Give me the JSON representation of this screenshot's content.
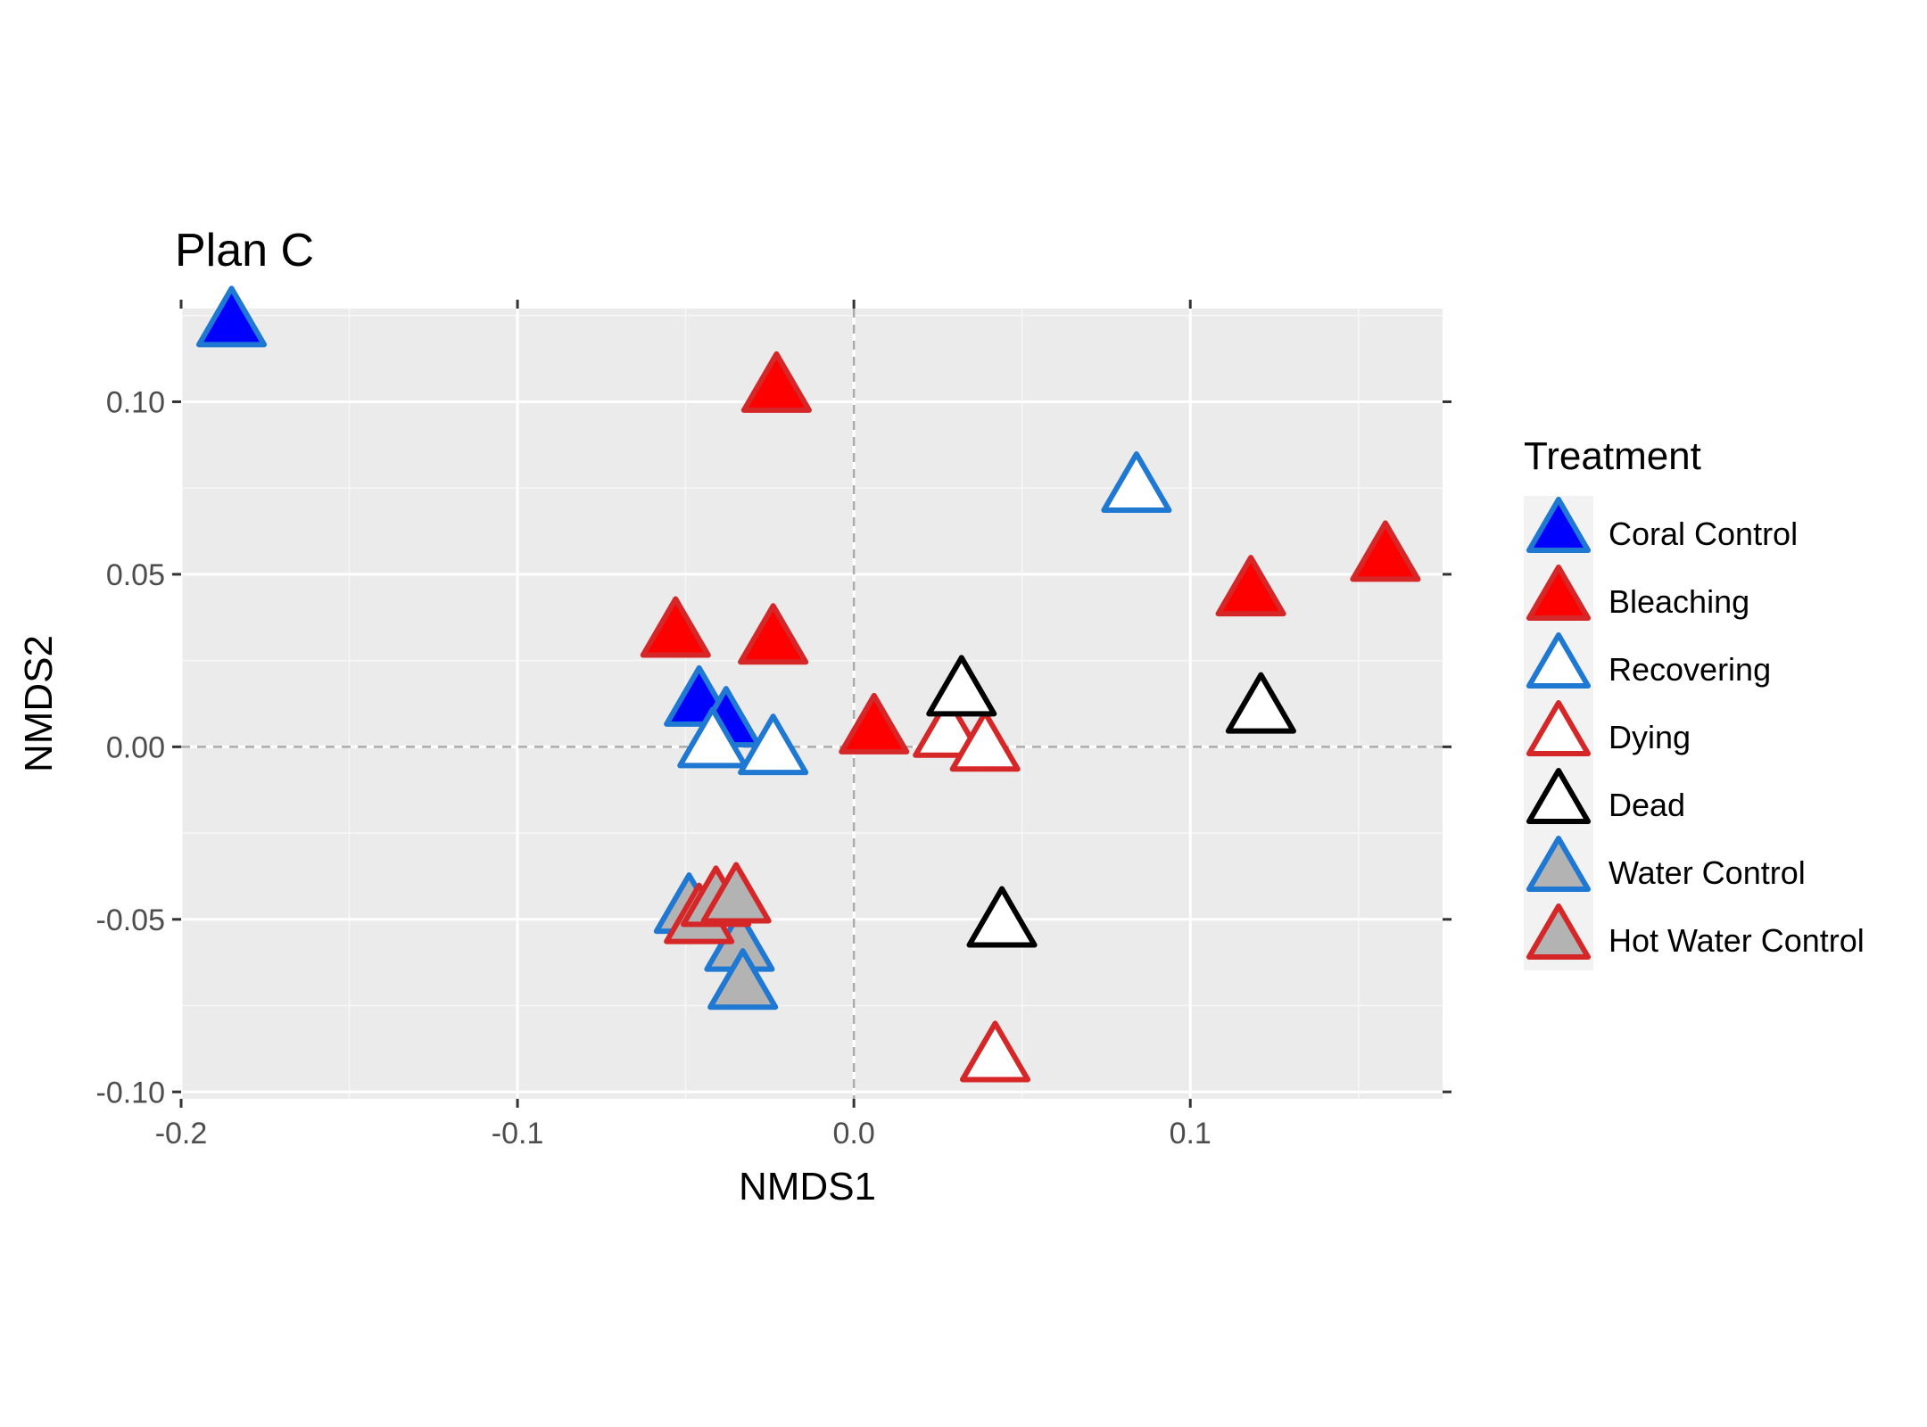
{
  "chart_data": {
    "type": "scatter",
    "title": "Plan C",
    "xlabel": "NMDS1",
    "ylabel": "NMDS2",
    "xlim": [
      -0.2,
      0.175
    ],
    "ylim": [
      -0.102,
      0.127
    ],
    "x_ticks": [
      -0.2,
      -0.1,
      0.0,
      0.1
    ],
    "x_tick_labels": [
      "-0.2",
      "-0.1",
      "0.0",
      "0.1"
    ],
    "y_ticks": [
      -0.1,
      -0.05,
      0.0,
      0.05,
      0.1
    ],
    "y_tick_labels": [
      "-0.10",
      "-0.05",
      "0.00",
      "0.05",
      "0.10"
    ],
    "reference_lines": {
      "x": 0,
      "y": 0,
      "style": "dashed"
    },
    "grid": true,
    "panel_background": "#ebebeb",
    "legend": {
      "title": "Treatment",
      "position": "right"
    },
    "marker": "triangle",
    "series": [
      {
        "name": "Coral Control",
        "fill": "#0000ff",
        "stroke": "#1f78d1",
        "points": [
          [
            -0.185,
            0.122
          ],
          [
            -0.046,
            0.012
          ],
          [
            -0.038,
            0.006
          ]
        ]
      },
      {
        "name": "Bleaching",
        "fill": "#ff0000",
        "stroke": "#d62728",
        "points": [
          [
            -0.023,
            0.103
          ],
          [
            -0.053,
            0.032
          ],
          [
            -0.024,
            0.03
          ],
          [
            0.006,
            0.004
          ],
          [
            0.118,
            0.044
          ],
          [
            0.158,
            0.054
          ]
        ]
      },
      {
        "name": "Recovering",
        "fill": "#ffffff",
        "stroke": "#1f78d1",
        "points": [
          [
            0.084,
            0.074
          ],
          [
            -0.042,
            0.0
          ],
          [
            -0.024,
            -0.002
          ]
        ]
      },
      {
        "name": "Dying",
        "fill": "#ffffff",
        "stroke": "#d62728",
        "points": [
          [
            0.028,
            0.003
          ],
          [
            0.039,
            -0.001
          ],
          [
            0.042,
            -0.091
          ]
        ]
      },
      {
        "name": "Dead",
        "fill": "#ffffff",
        "stroke": "#000000",
        "points": [
          [
            0.032,
            0.015
          ],
          [
            0.121,
            0.01
          ],
          [
            0.044,
            -0.052
          ]
        ]
      },
      {
        "name": "Water Control",
        "fill": "#b3b3b3",
        "stroke": "#1f78d1",
        "points": [
          [
            -0.049,
            -0.048
          ],
          [
            -0.034,
            -0.059
          ],
          [
            -0.033,
            -0.07
          ]
        ]
      },
      {
        "name": "Hot Water Control",
        "fill": "#b3b3b3",
        "stroke": "#d62728",
        "points": [
          [
            -0.046,
            -0.051
          ],
          [
            -0.041,
            -0.046
          ],
          [
            -0.035,
            -0.045
          ]
        ]
      }
    ]
  }
}
